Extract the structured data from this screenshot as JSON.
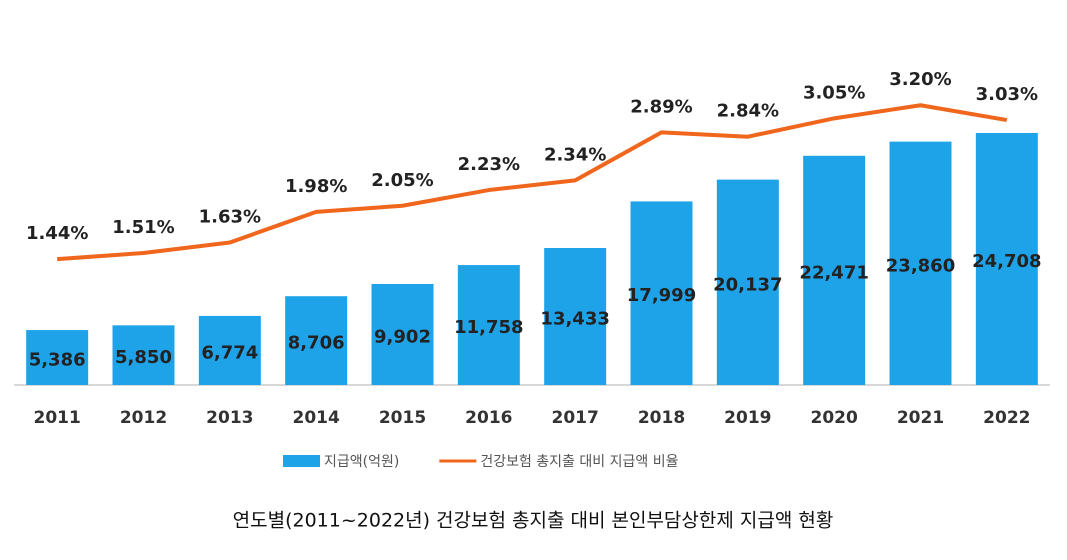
{
  "chart_data": {
    "type": "bar",
    "title": "연도별(2011~2022년) 건강보험 총지출 대비 본인부담상한제 지급액 현황",
    "categories": [
      "2011",
      "2012",
      "2013",
      "2014",
      "2015",
      "2016",
      "2017",
      "2018",
      "2019",
      "2020",
      "2021",
      "2022"
    ],
    "series": [
      {
        "name": "지급액(억원)",
        "color": "#1fa3e8",
        "type": "bar",
        "values": [
          5386,
          5850,
          6774,
          8706,
          9902,
          11758,
          13433,
          17999,
          20137,
          22471,
          23860,
          24708
        ],
        "value_labels": [
          "5,386",
          "5,850",
          "6,774",
          "8,706",
          "9,902",
          "11,758",
          "13,433",
          "17,999",
          "20,137",
          "22,471",
          "23,860",
          "24,708"
        ]
      },
      {
        "name": "건강보험 총지출 대비 지급액 비율",
        "color": "#f0661c",
        "type": "line",
        "axis": "y2",
        "values": [
          1.44,
          1.51,
          1.63,
          1.98,
          2.05,
          2.23,
          2.34,
          2.89,
          2.84,
          3.05,
          3.2,
          3.03
        ],
        "value_labels": [
          "1.44%",
          "1.51%",
          "1.63%",
          "1.98%",
          "2.05%",
          "2.23%",
          "2.34%",
          "2.89%",
          "2.84%",
          "3.05%",
          "3.20%",
          "3.03%"
        ]
      }
    ],
    "ylim": [
      0,
      30000
    ],
    "y2lim": [
      0,
      3.5
    ],
    "legend": "bottom"
  }
}
